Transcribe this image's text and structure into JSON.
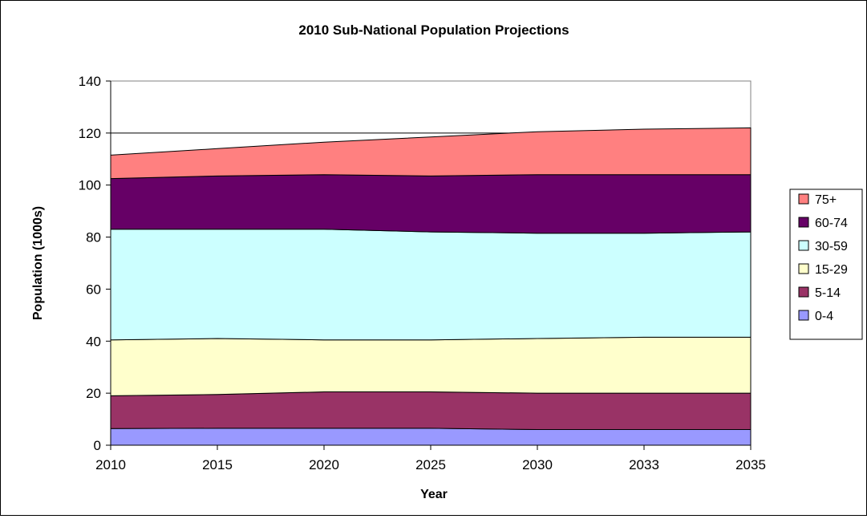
{
  "chart_data": {
    "type": "area",
    "stacked": true,
    "title": "2010 Sub-National Population Projections",
    "xlabel": "Year",
    "ylabel": "Population (1000s)",
    "categories": [
      "2010",
      "2015",
      "2020",
      "2025",
      "2030",
      "2033",
      "2035"
    ],
    "ylim": [
      0,
      140
    ],
    "yticks": [
      "0",
      "20",
      "40",
      "60",
      "80",
      "100",
      "120",
      "140"
    ],
    "grid": "horizontal",
    "legend_position": "right",
    "series": [
      {
        "name": "0-4",
        "color": "#9999ff",
        "values": [
          6.4,
          6.5,
          6.5,
          6.5,
          6.0,
          6.0,
          6.0
        ]
      },
      {
        "name": "5-14",
        "color": "#993366",
        "values": [
          12.6,
          13.0,
          14.0,
          14.0,
          14.0,
          14.0,
          14.0
        ]
      },
      {
        "name": "15-29",
        "color": "#ffffcc",
        "values": [
          21.5,
          21.5,
          20.0,
          20.0,
          21.0,
          21.5,
          21.5
        ]
      },
      {
        "name": "30-59",
        "color": "#ccffff",
        "values": [
          42.5,
          42.0,
          42.5,
          41.5,
          40.5,
          40.0,
          40.5
        ]
      },
      {
        "name": "60-74",
        "color": "#660066",
        "values": [
          19.5,
          20.5,
          21.0,
          21.5,
          22.5,
          22.5,
          22.0
        ]
      },
      {
        "name": "75+",
        "color": "#ff8080",
        "values": [
          9.0,
          10.5,
          12.5,
          15.0,
          16.5,
          17.5,
          18.0
        ]
      }
    ]
  }
}
